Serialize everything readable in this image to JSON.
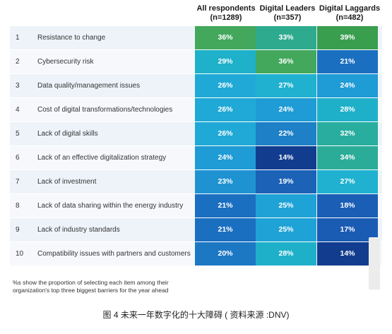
{
  "chart_data": {
    "type": "table",
    "columns": [
      {
        "line1": "All respondents",
        "line2": "(n=1289)"
      },
      {
        "line1": "Digital Leaders",
        "line2": "(n=357)"
      },
      {
        "line1": "Digital Laggards",
        "line2": "(n=482)"
      }
    ],
    "rows": [
      {
        "rank": "1",
        "label": "Resistance to change",
        "values": [
          "36%",
          "33%",
          "39%"
        ]
      },
      {
        "rank": "2",
        "label": "Cybersecurity risk",
        "values": [
          "29%",
          "36%",
          "21%"
        ]
      },
      {
        "rank": "3",
        "label": "Data quality/management issues",
        "values": [
          "26%",
          "27%",
          "24%"
        ]
      },
      {
        "rank": "4",
        "label": "Cost of digital transformations/technologies",
        "values": [
          "26%",
          "24%",
          "28%"
        ]
      },
      {
        "rank": "5",
        "label": "Lack of digital skills",
        "values": [
          "26%",
          "22%",
          "32%"
        ]
      },
      {
        "rank": "6",
        "label": "Lack of an effective digitalization strategy",
        "values": [
          "24%",
          "14%",
          "34%"
        ]
      },
      {
        "rank": "7",
        "label": "Lack of investment",
        "values": [
          "23%",
          "19%",
          "27%"
        ]
      },
      {
        "rank": "8",
        "label": "Lack of data sharing within the energy industry",
        "values": [
          "21%",
          "25%",
          "18%"
        ]
      },
      {
        "rank": "9",
        "label": "Lack of industry standards",
        "values": [
          "21%",
          "25%",
          "17%"
        ]
      },
      {
        "rank": "10",
        "label": "Compatibility issues with partners and customers",
        "values": [
          "20%",
          "28%",
          "14%"
        ]
      }
    ]
  },
  "colors": {
    "36%": "#43a85c",
    "33%": "#2eab8f",
    "39%": "#3a9e4f",
    "29%": "#1eb1c9",
    "21%": "#1b6fc0",
    "26%": "#20a9d6",
    "27%": "#1fb1cf",
    "24%": "#1f9bd5",
    "28%": "#1fb0c9",
    "22%": "#1e80c6",
    "32%": "#28ad9e",
    "14%": "#123d8f",
    "34%": "#2aac98",
    "23%": "#1f93d1",
    "19%": "#1c62b7",
    "25%": "#1fa3d6",
    "18%": "#1a5eb5",
    "17%": "#1a5bb4",
    "20%": "#1d78c4"
  },
  "note": {
    "line1": "%s show the proportion of selecting each item among their",
    "line2": "organization's top three biggest barriers for the year ahead"
  },
  "caption": "图 4 未来一年数字化的十大障碍 ( 资料来源 :DNV)"
}
